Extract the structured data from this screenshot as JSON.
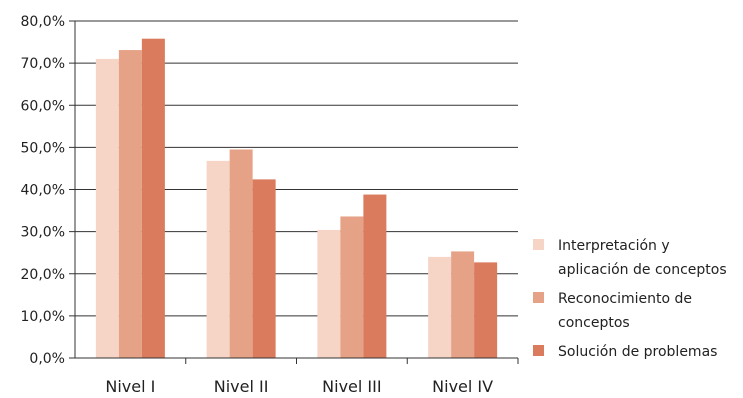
{
  "chart_data": {
    "type": "bar",
    "categories": [
      "Nivel I",
      "Nivel II",
      "Nivel III",
      "Nivel IV"
    ],
    "series": [
      {
        "name": "Interpretación y aplicación de conceptos",
        "color": "#f6d5c7",
        "values": [
          71.0,
          46.8,
          30.4,
          24.0
        ]
      },
      {
        "name": "Reconocimiento de conceptos",
        "color": "#e6a286",
        "values": [
          73.1,
          49.5,
          33.6,
          25.3
        ]
      },
      {
        "name": "Solución de problemas",
        "color": "#d97b5c",
        "values": [
          75.8,
          42.4,
          38.8,
          22.7
        ]
      }
    ],
    "yticks": [
      "0,0%",
      "10,0%",
      "20,0%",
      "30,0%",
      "40,0%",
      "50,0%",
      "60,0%",
      "70,0%",
      "80,0%"
    ],
    "ylim": [
      0,
      80
    ],
    "grid": true,
    "legend_position": "right"
  }
}
